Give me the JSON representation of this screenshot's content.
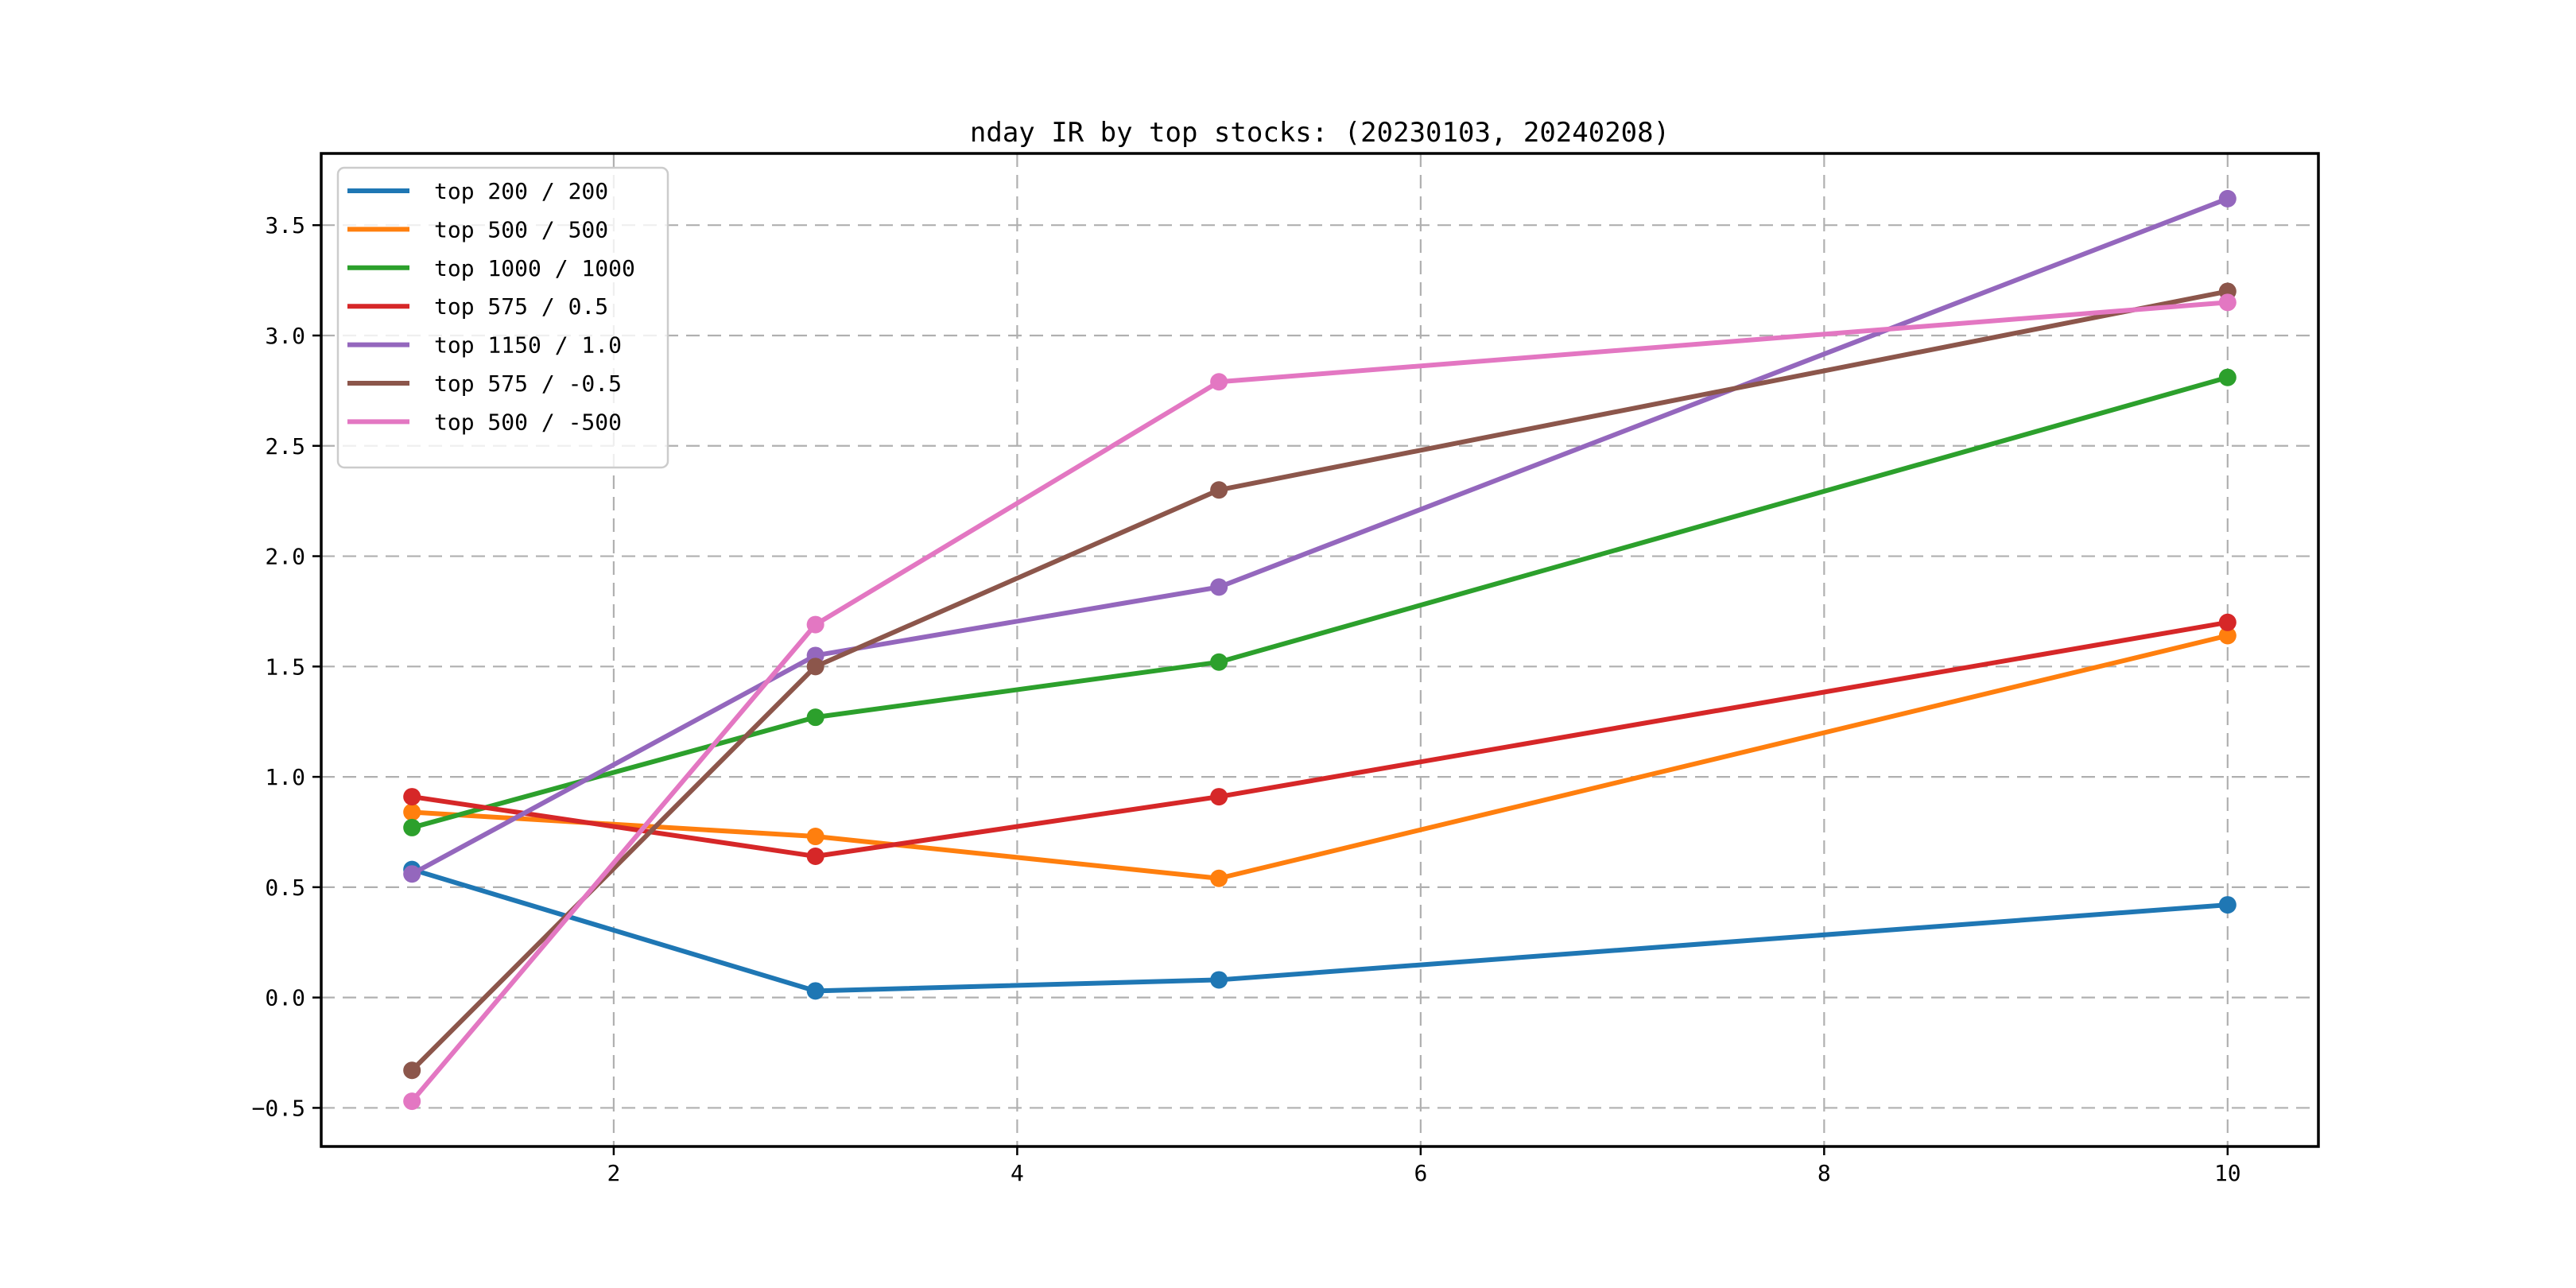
{
  "figure": {
    "background": "#ffffff"
  },
  "chart_data": {
    "type": "line",
    "title": "nday IR by top stocks: (20230103, 20240208)",
    "xlabel": "",
    "ylabel": "",
    "x": [
      1,
      3,
      5,
      10
    ],
    "series": [
      {
        "name": "top 200 / 200",
        "color": "#1f77b4",
        "values": [
          0.58,
          0.03,
          0.08,
          0.42
        ]
      },
      {
        "name": "top 500 / 500",
        "color": "#ff7f0e",
        "values": [
          0.84,
          0.73,
          0.54,
          1.64
        ]
      },
      {
        "name": "top 1000 / 1000",
        "color": "#2ca02c",
        "values": [
          0.77,
          1.27,
          1.52,
          2.81
        ]
      },
      {
        "name": "top 575 / 0.5",
        "color": "#d62728",
        "values": [
          0.91,
          0.64,
          0.91,
          1.7
        ]
      },
      {
        "name": "top 1150 / 1.0",
        "color": "#9467bd",
        "values": [
          0.56,
          1.55,
          1.86,
          3.62
        ]
      },
      {
        "name": "top 575 / -0.5",
        "color": "#8c564b",
        "values": [
          -0.33,
          1.5,
          2.3,
          3.2
        ]
      },
      {
        "name": "top 500 / -500",
        "color": "#e377c2",
        "values": [
          -0.47,
          1.69,
          2.79,
          3.15
        ]
      }
    ],
    "xlim": [
      0.55,
      10.45
    ],
    "ylim": [
      -0.675,
      3.825
    ],
    "xticks": [
      2,
      4,
      6,
      8,
      10
    ],
    "xtick_labels": [
      "2",
      "4",
      "6",
      "8",
      "10"
    ],
    "yticks": [
      -0.5,
      0.0,
      0.5,
      1.0,
      1.5,
      2.0,
      2.5,
      3.0,
      3.5
    ],
    "ytick_labels": [
      "−0.5",
      "0.0",
      "0.5",
      "1.0",
      "1.5",
      "2.0",
      "2.5",
      "3.0",
      "3.5"
    ],
    "grid": true,
    "grid_style": "dashed",
    "grid_color": "#b0b0b0",
    "spine_color": "#000000",
    "text_color": "#000000",
    "legend_position": "upper left",
    "legend_border_color": "#cccccc",
    "legend_background": "#ffffff"
  }
}
